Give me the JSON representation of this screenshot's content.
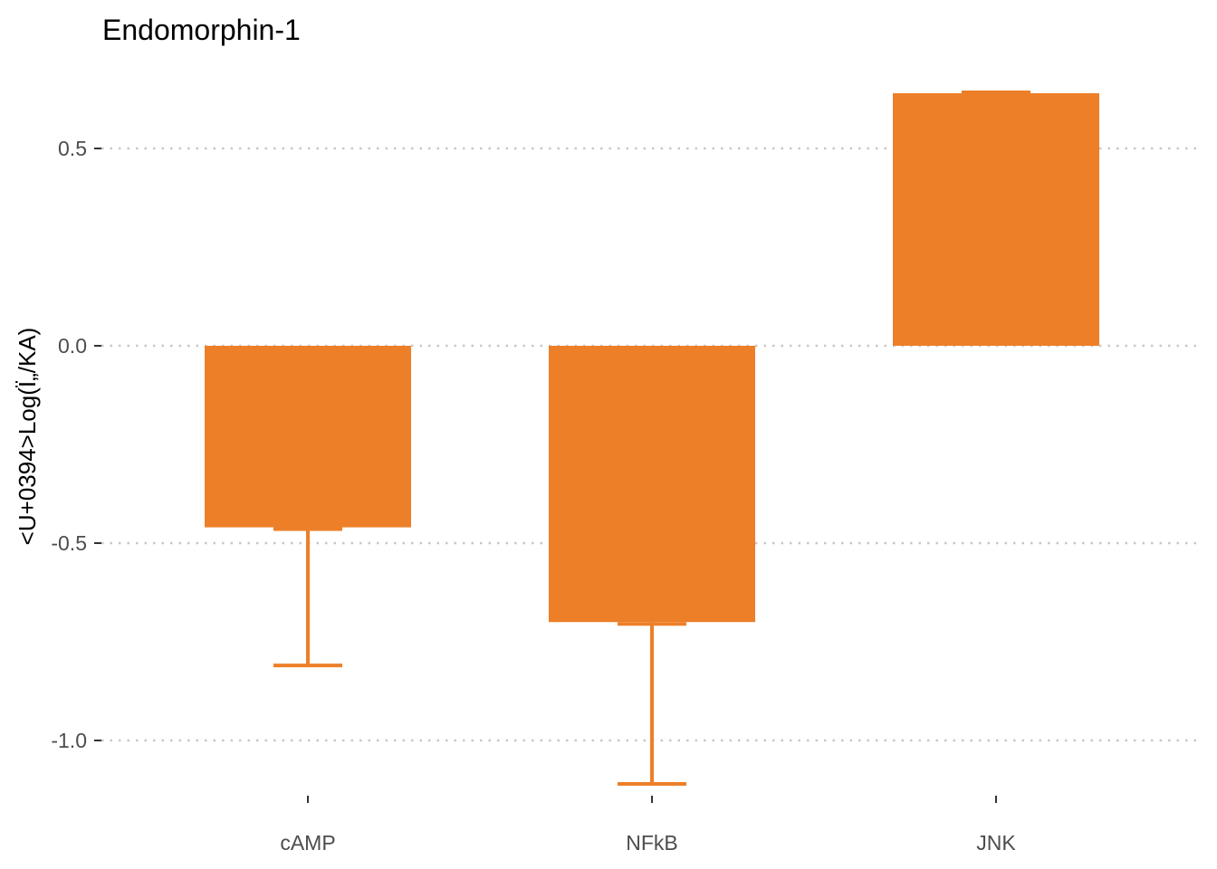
{
  "chart_data": {
    "type": "bar",
    "title": "Endomorphin-1",
    "xlabel": "",
    "ylabel": "<U+0394>Log(Ï„/KA)",
    "categories": [
      "cAMP",
      "NFkB",
      "JNK"
    ],
    "values": [
      -0.46,
      -0.7,
      0.64
    ],
    "error_low": [
      -0.81,
      -1.11,
      null
    ],
    "error_high": [
      -0.46,
      -0.7,
      0.64
    ],
    "y_ticks": [
      0.5,
      0.0,
      -0.5,
      -1.0
    ],
    "y_tick_labels": [
      "0.5",
      "0.0",
      "-0.5",
      "-1.0"
    ],
    "ylim": [
      -1.22,
      0.7
    ],
    "grid": "horizontal dotted",
    "legend": "none",
    "colors": {
      "bar": "#ed7f28",
      "grid": "#c8c8c8",
      "axis_text": "#4d4d4d"
    }
  }
}
